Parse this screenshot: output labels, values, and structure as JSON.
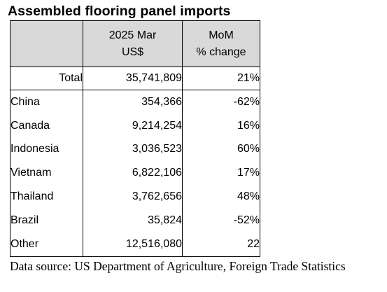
{
  "title": "Assembled flooring panel imports",
  "table": {
    "headers": [
      {
        "line1": "",
        "line2": ""
      },
      {
        "line1": "2025 Mar",
        "line2": "US$"
      },
      {
        "line1": "MoM",
        "line2": "% change"
      }
    ],
    "total": {
      "label": "Total",
      "value": "35,741,809",
      "change": "21%"
    },
    "rows": [
      {
        "country": "China",
        "value": "354,366",
        "change": "-62%"
      },
      {
        "country": "Canada",
        "value": "9,214,254",
        "change": "16%"
      },
      {
        "country": "Indonesia",
        "value": "3,036,523",
        "change": "60%"
      },
      {
        "country": "Vietnam",
        "value": "6,822,106",
        "change": "17%"
      },
      {
        "country": "Thailand",
        "value": "3,762,656",
        "change": "48%"
      },
      {
        "country": "Brazil",
        "value": "35,824",
        "change": "-52%"
      },
      {
        "country": "Other",
        "value": "12,516,080",
        "change": "22"
      }
    ]
  },
  "source": "Data source: US Department of Agriculture, Foreign Trade Statistics"
}
